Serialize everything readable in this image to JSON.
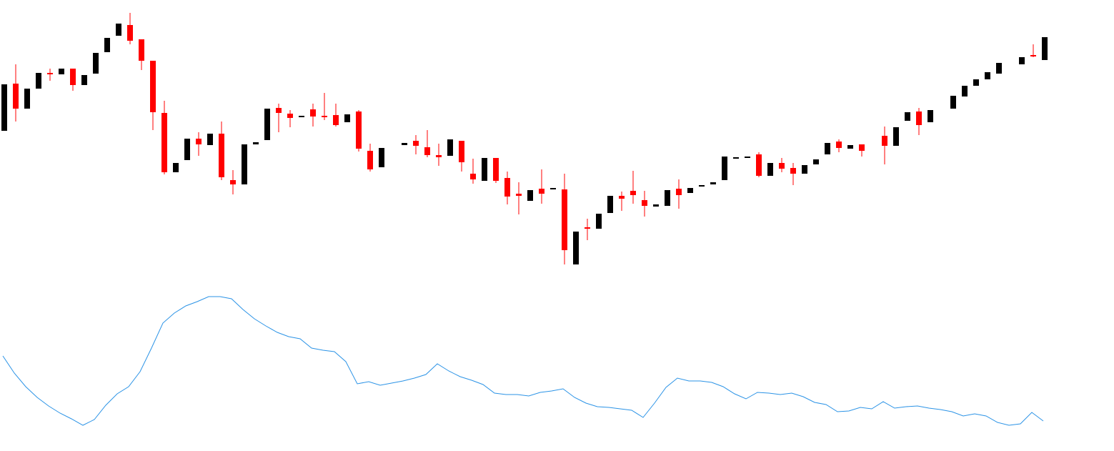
{
  "chart_data": [
    {
      "type": "candlestick",
      "up_color": "#000000",
      "down_color": "#ff0000",
      "ylim": [
        0,
        400
      ],
      "open": [
        217,
        283,
        248,
        276,
        298,
        296,
        304,
        281,
        297,
        327,
        350,
        365,
        345,
        315,
        242,
        159,
        176,
        206,
        197,
        213,
        148,
        142,
        198,
        204,
        249,
        241,
        236,
        247,
        238,
        239,
        229,
        244,
        189,
        166,
        null,
        197,
        203,
        194,
        183,
        182,
        203,
        157,
        147,
        179,
        151,
        129,
        119,
        136,
        135,
        135,
        30,
        82,
        80,
        102,
        126,
        133,
        120,
        111,
        112,
        136,
        130,
        139,
        142,
        148,
        178,
        179,
        184,
        154,
        172,
        165,
        157,
        170,
        184,
        202,
        192,
        198,
        null,
        210,
        196,
        231,
        244,
        229,
        null,
        248,
        265,
        280,
        289,
        297,
        null,
        310,
        323,
        316
      ],
      "high": [
        282,
        310,
        276,
        298,
        304,
        304,
        304,
        295,
        326,
        347,
        367,
        382,
        345,
        315,
        259,
        172,
        206,
        215,
        213,
        230,
        162,
        198,
        201,
        248,
        255,
        246,
        238,
        255,
        270,
        255,
        240,
        246,
        199,
        193,
        null,
        200,
        211,
        218,
        199,
        205,
        203,
        178,
        179,
        179,
        160,
        145,
        134,
        163,
        137,
        157,
        76,
        94,
        101,
        126,
        132,
        161,
        133,
        114,
        134,
        149,
        137,
        141,
        145,
        181,
        180,
        181,
        187,
        172,
        179,
        172,
        169,
        177,
        200,
        205,
        197,
        198,
        null,
        223,
        222,
        243,
        249,
        246,
        null,
        266,
        280,
        289,
        299,
        312,
        null,
        320,
        338,
        348
      ],
      "low": [
        217,
        230,
        248,
        276,
        287,
        296,
        273,
        281,
        297,
        327,
        350,
        338,
        302,
        218,
        156,
        159,
        176,
        182,
        197,
        148,
        128,
        142,
        198,
        204,
        215,
        222,
        236,
        223,
        232,
        223,
        229,
        188,
        160,
        166,
        null,
        197,
        184,
        180,
        168,
        182,
        160,
        143,
        147,
        144,
        114,
        100,
        119,
        115,
        135,
        30,
        30,
        64,
        80,
        102,
        105,
        115,
        97,
        111,
        112,
        108,
        130,
        139,
        142,
        148,
        178,
        179,
        152,
        154,
        159,
        141,
        157,
        170,
        184,
        187,
        192,
        181,
        null,
        170,
        196,
        231,
        211,
        229,
        null,
        248,
        265,
        280,
        289,
        297,
        null,
        310,
        320,
        316
      ],
      "close": [
        282,
        248,
        276,
        298,
        296,
        304,
        281,
        295,
        326,
        347,
        367,
        343,
        315,
        243,
        159,
        172,
        206,
        198,
        213,
        152,
        142,
        198,
        201,
        248,
        242,
        235,
        238,
        237,
        237,
        225,
        240,
        192,
        163,
        193,
        null,
        200,
        196,
        183,
        180,
        205,
        173,
        149,
        179,
        147,
        125,
        126,
        134,
        129,
        137,
        50,
        76,
        81,
        101,
        126,
        122,
        127,
        112,
        114,
        134,
        127,
        137,
        141,
        145,
        181,
        180,
        181,
        154,
        172,
        164,
        157,
        169,
        177,
        200,
        193,
        197,
        189,
        null,
        196,
        222,
        243,
        225,
        246,
        null,
        266,
        280,
        289,
        299,
        312,
        null,
        320,
        322,
        348
      ]
    },
    {
      "type": "line",
      "color": "#2b93e6",
      "ylim": [
        0,
        220
      ],
      "values": [
        122,
        98,
        79,
        64,
        52,
        42,
        34,
        25,
        33,
        53,
        69,
        79,
        100,
        133,
        168,
        182,
        192,
        198,
        205,
        205,
        202,
        187,
        174,
        164,
        155,
        149,
        146,
        133,
        130,
        128,
        114,
        83,
        86,
        81,
        84,
        87,
        91,
        96,
        111,
        101,
        93,
        88,
        82,
        70,
        68,
        68,
        66,
        71,
        73,
        76,
        64,
        56,
        51,
        50,
        48,
        46,
        36,
        56,
        78,
        91,
        87,
        87,
        85,
        79,
        69,
        62,
        71,
        70,
        68,
        70,
        65,
        57,
        54,
        44,
        45,
        50,
        48,
        58,
        49,
        51,
        52,
        49,
        47,
        44,
        38,
        41,
        38,
        29,
        25,
        27,
        43,
        31
      ]
    }
  ]
}
